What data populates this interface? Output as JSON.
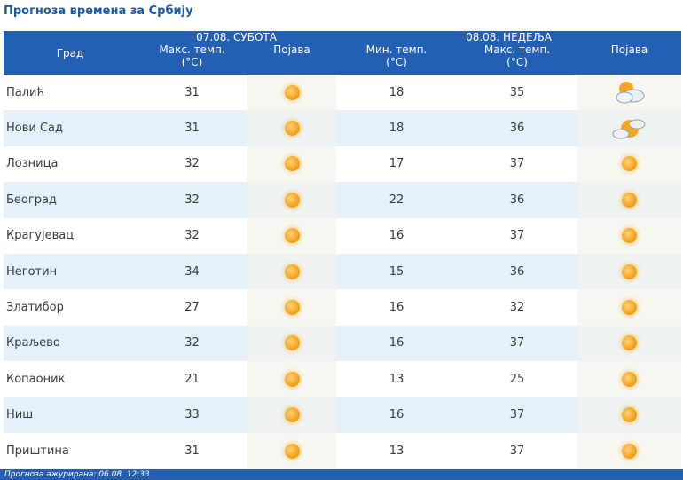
{
  "title": "Прогноза времена за Србију",
  "header": {
    "city": "Град",
    "day1": "07.08. СУБОТА",
    "day2": "08.08. НЕДЕЉА",
    "max_temp_line1": "Макс. темп.",
    "min_temp_line1": "Мин. темп.",
    "unit": "(°C)",
    "phenomenon": "Појава"
  },
  "rows": [
    {
      "city": "Палић",
      "d1_max": "31",
      "d1_icon": "sun-icon",
      "d2_min": "18",
      "d2_max": "35",
      "d2_icon": "partly-cloudy-icon"
    },
    {
      "city": "Нови Сад",
      "d1_max": "31",
      "d1_icon": "sun-icon",
      "d2_min": "18",
      "d2_max": "36",
      "d2_icon": "sun-cloud-icon"
    },
    {
      "city": "Лозница",
      "d1_max": "32",
      "d1_icon": "sun-icon",
      "d2_min": "17",
      "d2_max": "37",
      "d2_icon": "sun-icon"
    },
    {
      "city": "Београд",
      "d1_max": "32",
      "d1_icon": "sun-icon",
      "d2_min": "22",
      "d2_max": "36",
      "d2_icon": "sun-icon"
    },
    {
      "city": "Крагујевац",
      "d1_max": "32",
      "d1_icon": "sun-icon",
      "d2_min": "16",
      "d2_max": "37",
      "d2_icon": "sun-icon"
    },
    {
      "city": "Неготин",
      "d1_max": "34",
      "d1_icon": "sun-icon",
      "d2_min": "15",
      "d2_max": "36",
      "d2_icon": "sun-icon"
    },
    {
      "city": "Златибор",
      "d1_max": "27",
      "d1_icon": "sun-icon",
      "d2_min": "16",
      "d2_max": "32",
      "d2_icon": "sun-icon"
    },
    {
      "city": "Краљево",
      "d1_max": "32",
      "d1_icon": "sun-icon",
      "d2_min": "16",
      "d2_max": "37",
      "d2_icon": "sun-icon"
    },
    {
      "city": "Копаоник",
      "d1_max": "21",
      "d1_icon": "sun-icon",
      "d2_min": "13",
      "d2_max": "25",
      "d2_icon": "sun-icon"
    },
    {
      "city": "Ниш",
      "d1_max": "33",
      "d1_icon": "sun-icon",
      "d2_min": "16",
      "d2_max": "37",
      "d2_icon": "sun-icon"
    },
    {
      "city": "Приштина",
      "d1_max": "31",
      "d1_icon": "sun-icon",
      "d2_min": "13",
      "d2_max": "37",
      "d2_icon": "sun-icon"
    }
  ],
  "footer": "Прогноза ажурирана:  06.08.  12:33",
  "colors": {
    "header_bg": "#2360b4",
    "title": "#1a5aa8",
    "stripe": "#e6f0fa"
  }
}
